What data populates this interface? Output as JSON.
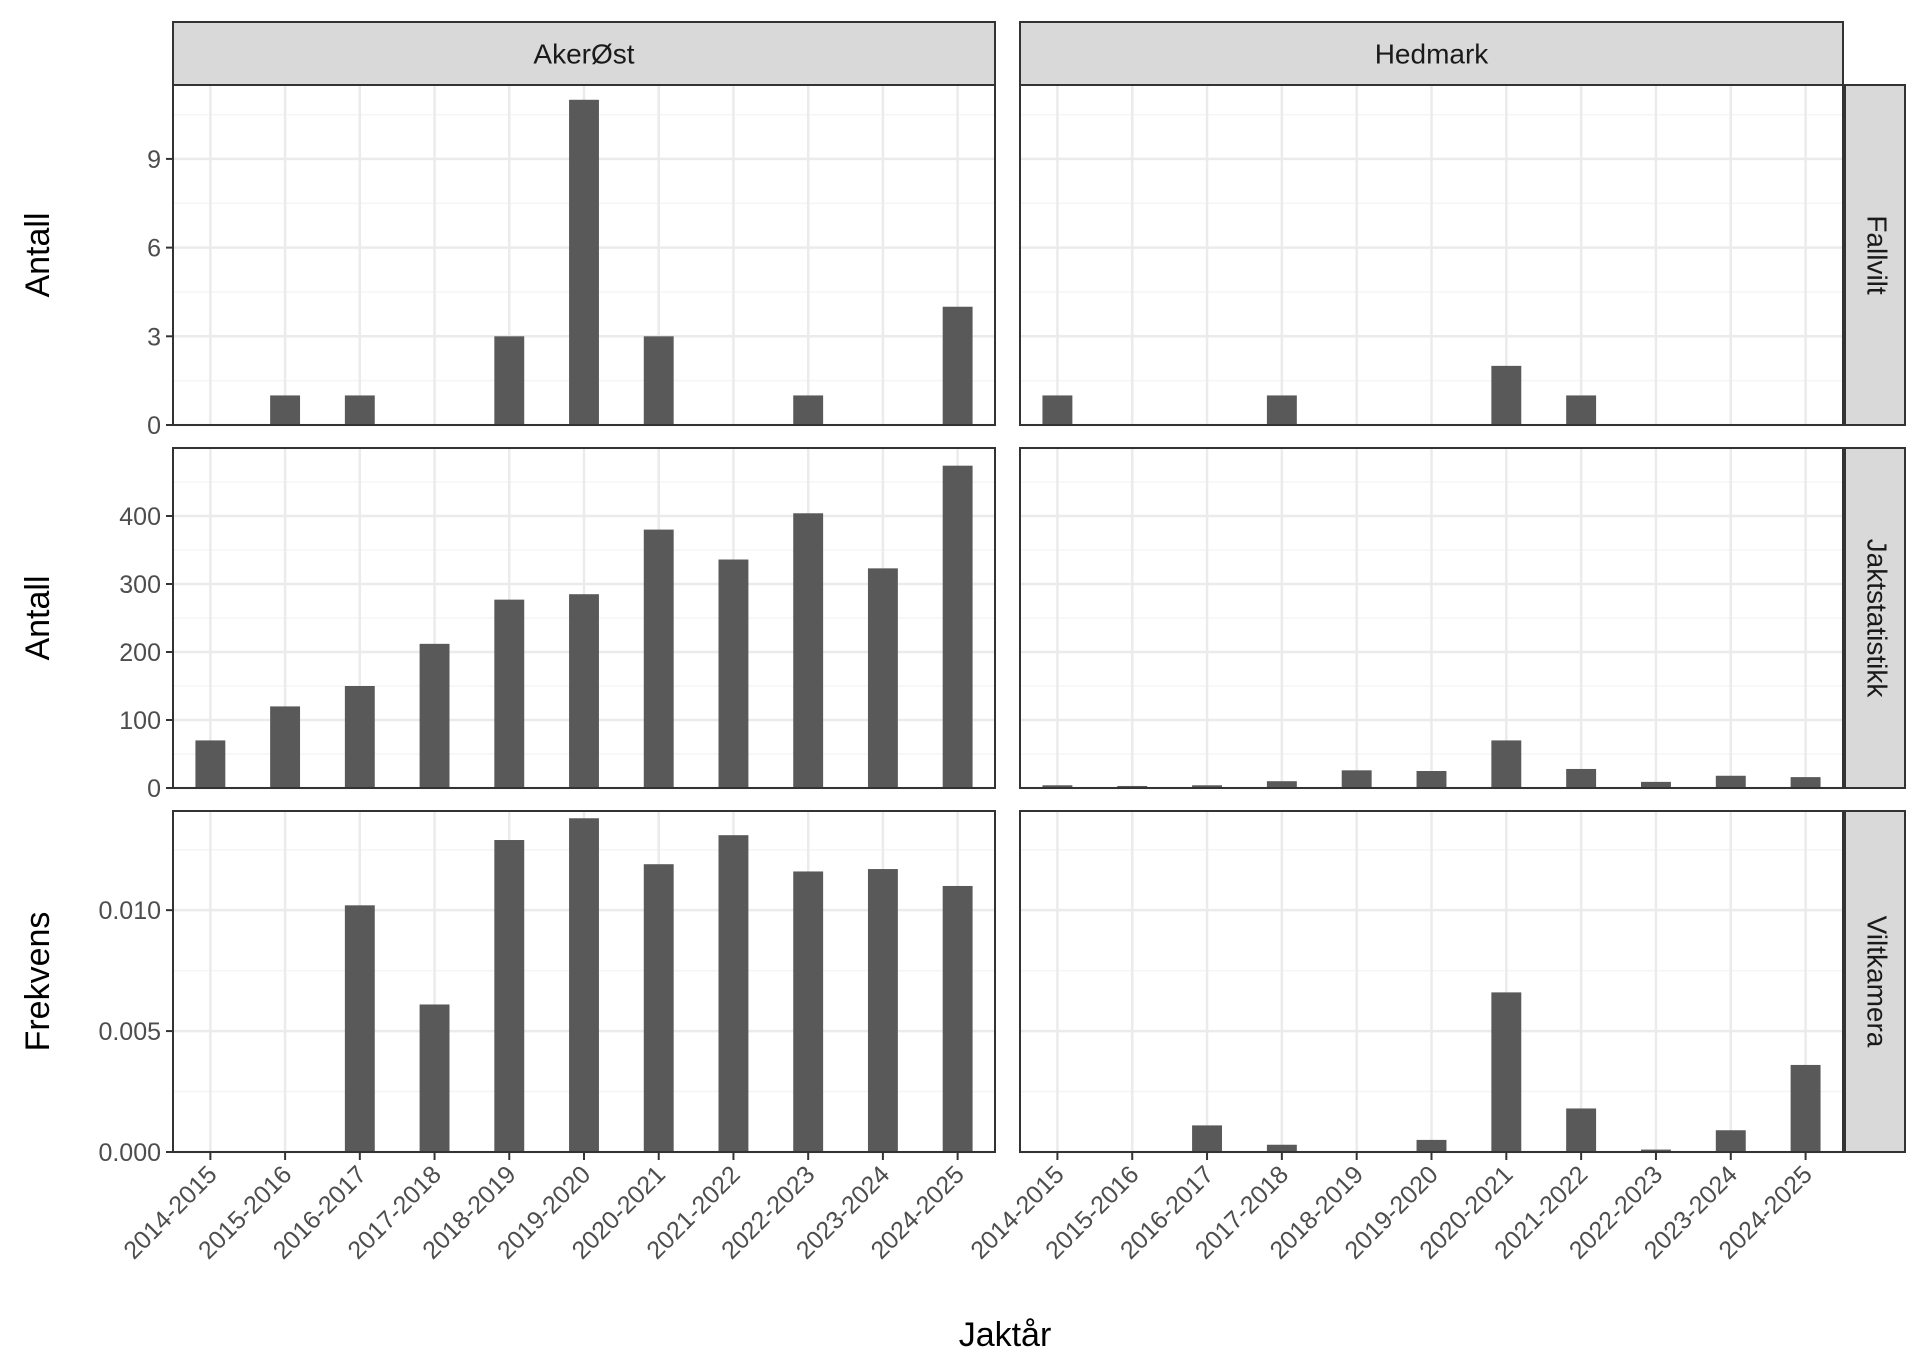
{
  "chart_data": {
    "type": "bar",
    "facet_cols": [
      "AkerØst",
      "Hedmark"
    ],
    "facet_rows": [
      {
        "name": "Fallvilt",
        "ylabel": "Antall",
        "ylim": [
          0,
          11.5
        ],
        "yticks": [
          0,
          3,
          6,
          9
        ],
        "ytick_labels": [
          "0",
          "3",
          "6",
          "9"
        ]
      },
      {
        "name": "Jaktstatistikk",
        "ylabel": "Antall",
        "ylim": [
          0,
          500
        ],
        "yticks": [
          0,
          100,
          200,
          300,
          400
        ],
        "ytick_labels": [
          "0",
          "100",
          "200",
          "300",
          "400"
        ]
      },
      {
        "name": "Viltkamera",
        "ylabel": "Frekvens",
        "ylim": [
          0,
          0.0141
        ],
        "yticks": [
          0,
          0.005,
          0.01
        ],
        "ytick_labels": [
          "0.000",
          "0.005",
          "0.010"
        ]
      }
    ],
    "categories": [
      "2014-2015",
      "2015-2016",
      "2016-2017",
      "2017-2018",
      "2018-2019",
      "2019-2020",
      "2020-2021",
      "2021-2022",
      "2022-2023",
      "2023-2024",
      "2024-2025"
    ],
    "xlabel": "Jaktår",
    "grid": true,
    "panels": [
      {
        "row": "Fallvilt",
        "col": "AkerØst",
        "values": [
          0,
          1,
          1,
          0,
          3,
          11,
          3,
          0,
          1,
          0,
          4
        ]
      },
      {
        "row": "Fallvilt",
        "col": "Hedmark",
        "values": [
          1,
          0,
          0,
          1,
          0,
          0,
          2,
          1,
          0,
          0,
          0
        ]
      },
      {
        "row": "Jaktstatistikk",
        "col": "AkerØst",
        "values": [
          70,
          120,
          150,
          212,
          277,
          285,
          380,
          336,
          404,
          323,
          474
        ]
      },
      {
        "row": "Jaktstatistikk",
        "col": "Hedmark",
        "values": [
          4,
          3,
          4,
          10,
          26,
          25,
          70,
          28,
          9,
          18,
          16
        ]
      },
      {
        "row": "Viltkamera",
        "col": "AkerØst",
        "values": [
          0,
          0,
          0.0102,
          0.0061,
          0.0129,
          0.0138,
          0.0119,
          0.0131,
          0.0116,
          0.0117,
          0.011
        ]
      },
      {
        "row": "Viltkamera",
        "col": "Hedmark",
        "values": [
          0,
          0,
          0.0011,
          0.0003,
          0,
          0.0005,
          0.0066,
          0.0018,
          0.0001,
          0.0009,
          0.0036
        ]
      }
    ],
    "colors": {
      "bar": "#595959",
      "grid_major": "#ebebeb",
      "grid_minor": "#f5f5f5",
      "strip_bg": "#d9d9d9",
      "border": "#333333"
    }
  }
}
